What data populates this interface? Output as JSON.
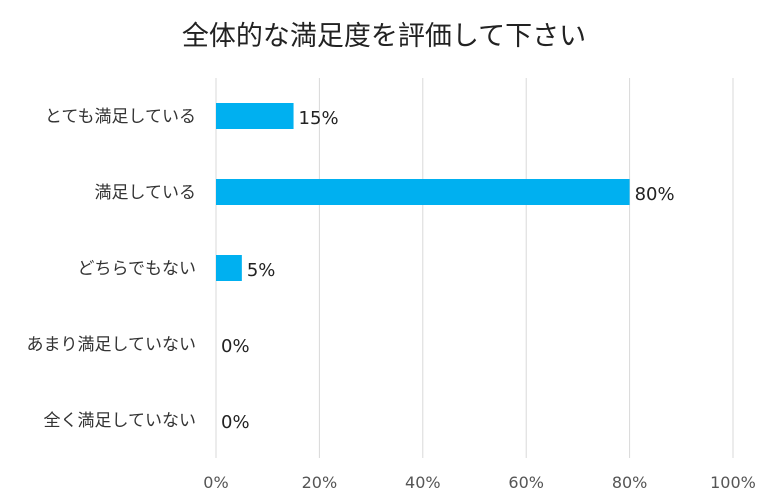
{
  "chart_data": {
    "type": "bar",
    "orientation": "horizontal",
    "title": "全体的な満足度を評価して下さい",
    "categories": [
      "とても満足している",
      "満足している",
      "どちらでもない",
      "あまり満足していない",
      "全く満足していない"
    ],
    "values": [
      15,
      80,
      5,
      0,
      0
    ],
    "value_labels": [
      "15%",
      "80%",
      "5%",
      "0%",
      "0%"
    ],
    "xlim": [
      0,
      100
    ],
    "x_ticks": [
      0,
      20,
      40,
      60,
      80,
      100
    ],
    "x_tick_labels": [
      "0%",
      "20%",
      "40%",
      "60%",
      "80%",
      "100%"
    ],
    "grid": true,
    "bar_color": "#00B0F0"
  }
}
